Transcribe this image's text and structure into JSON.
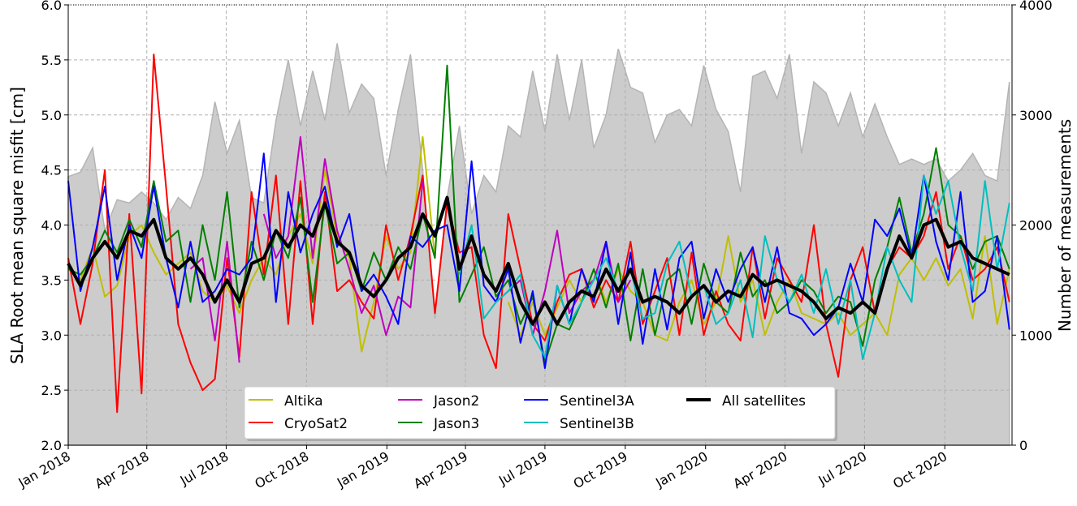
{
  "chart_data": {
    "type": "line",
    "title": "",
    "xlabel": "",
    "ylabel": "SLA Root mean square misfit [cm]",
    "y2label": "Number of measurements",
    "x_units": "days since 2018-01-01",
    "xlim": [
      0,
      1081
    ],
    "ylim": [
      2.0,
      6.0
    ],
    "y2lim": [
      0,
      4000
    ],
    "grid": true,
    "legend_placement": "bottom-center",
    "x_ticks": [
      {
        "day": 0,
        "label": "Jan 2018"
      },
      {
        "day": 90,
        "label": "Apr 2018"
      },
      {
        "day": 181,
        "label": "Jul 2018"
      },
      {
        "day": 273,
        "label": "Oct 2018"
      },
      {
        "day": 365,
        "label": "Jan 2019"
      },
      {
        "day": 455,
        "label": "Apr 2019"
      },
      {
        "day": 546,
        "label": "Jul 2019"
      },
      {
        "day": 638,
        "label": "Oct 2019"
      },
      {
        "day": 730,
        "label": "Jan 2020"
      },
      {
        "day": 821,
        "label": "Apr 2020"
      },
      {
        "day": 912,
        "label": "Jul 2020"
      },
      {
        "day": 1004,
        "label": "Oct 2020"
      }
    ],
    "y_ticks": [
      "2.0",
      "2.5",
      "3.0",
      "3.5",
      "4.0",
      "4.5",
      "5.0",
      "5.5",
      "6.0"
    ],
    "y2_ticks": [
      "0",
      "1000",
      "2000",
      "3000",
      "4000"
    ],
    "step_days": 14,
    "measurements": {
      "name": "Number of measurements",
      "color": "#cccccc",
      "values": [
        2440,
        2480,
        2700,
        1950,
        2230,
        2200,
        2300,
        2200,
        2050,
        2250,
        2150,
        2450,
        3120,
        2650,
        2950,
        2250,
        2200,
        2950,
        3500,
        2900,
        3400,
        2950,
        3650,
        3020,
        3280,
        3150,
        2450,
        3050,
        3550,
        2500,
        1150,
        2250,
        2900,
        2100,
        2450,
        2300,
        2900,
        2800,
        3400,
        2850,
        3550,
        2950,
        3500,
        2700,
        3000,
        3600,
        3250,
        3200,
        2750,
        3000,
        3050,
        2900,
        3450,
        3050,
        2850,
        2300,
        3350,
        3400,
        3150,
        3550,
        2650,
        3300,
        3200,
        2900,
        3200,
        2800,
        3100,
        2800,
        2550,
        2600,
        2550,
        2600,
        2400,
        2500,
        2650,
        2450,
        2400,
        3300
      ]
    },
    "series": [
      {
        "name": "Altika",
        "color": "#bfbf00",
        "width": 2,
        "start_index": 0,
        "values": [
          3.6,
          3.5,
          3.8,
          3.35,
          3.45,
          3.9,
          4.0,
          3.75,
          3.55,
          3.65,
          3.75,
          3.4,
          3.3,
          3.45,
          3.2,
          3.5,
          3.7,
          3.55,
          3.9,
          4.1,
          3.65,
          4.5,
          3.9,
          3.7,
          2.85,
          3.3,
          3.9,
          3.6,
          3.75,
          4.8,
          3.7,
          null,
          null,
          null,
          null,
          null,
          3.3,
          3.0,
          3.3,
          3.0,
          3.25,
          3.5,
          3.3,
          3.6,
          3.3,
          3.6,
          3.4,
          3.3,
          3.0,
          2.95,
          3.3,
          3.5,
          3.1,
          3.3,
          3.9,
          3.3,
          3.5,
          3.0,
          3.3,
          3.5,
          3.2,
          3.15,
          3.1,
          3.2,
          3.0,
          3.1,
          3.2,
          3.0,
          3.55,
          3.7,
          3.5,
          3.7,
          3.45,
          3.6,
          3.15,
          3.9,
          3.1,
          3.6
        ]
      },
      {
        "name": "CryoSat2",
        "color": "#ff0000",
        "width": 2,
        "start_index": 0,
        "values": [
          3.7,
          3.1,
          3.65,
          4.5,
          2.3,
          4.1,
          2.47,
          5.55,
          4.35,
          3.1,
          2.75,
          2.5,
          2.6,
          3.7,
          2.8,
          4.3,
          3.55,
          4.45,
          3.1,
          4.4,
          3.1,
          4.3,
          3.4,
          3.5,
          3.3,
          3.15,
          4.0,
          3.5,
          3.9,
          4.45,
          3.2,
          4.2,
          3.75,
          3.8,
          3.0,
          2.7,
          4.1,
          3.6,
          3.1,
          2.95,
          3.3,
          3.55,
          3.6,
          3.25,
          3.5,
          3.3,
          3.85,
          3.1,
          3.4,
          3.7,
          3.0,
          3.75,
          3.0,
          3.4,
          3.1,
          2.95,
          3.8,
          3.15,
          3.7,
          3.5,
          3.3,
          4.0,
          3.1,
          2.62,
          3.5,
          3.8,
          3.2,
          3.6,
          3.8,
          3.7,
          3.9,
          4.3,
          3.6,
          3.9,
          3.5,
          3.6,
          3.8,
          3.3
        ]
      },
      {
        "name": "Jason2",
        "color": "#bf00bf",
        "width": 2,
        "start_index": 10,
        "values": [
          3.6,
          3.7,
          2.95,
          3.85,
          2.75,
          null,
          4.1,
          3.7,
          3.9,
          4.8,
          3.7,
          4.6,
          3.95,
          3.6,
          3.2,
          3.45,
          3.0,
          3.35,
          3.25,
          4.4,
          null,
          null,
          null,
          null,
          null,
          3.3,
          3.4,
          3.5,
          3.0,
          3.4,
          3.95,
          3.2,
          3.4,
          3.5,
          3.85,
          3.3,
          3.5
        ]
      },
      {
        "name": "Jason3",
        "color": "#008000",
        "width": 2,
        "start_index": 0,
        "values": [
          3.6,
          3.55,
          3.7,
          3.95,
          3.75,
          4.05,
          3.8,
          4.4,
          3.85,
          3.95,
          3.3,
          4.0,
          3.5,
          4.3,
          3.25,
          3.85,
          3.5,
          3.95,
          3.7,
          4.25,
          3.3,
          4.2,
          3.65,
          3.75,
          3.4,
          3.75,
          3.5,
          3.8,
          3.6,
          4.1,
          3.7,
          5.45,
          3.3,
          3.55,
          3.8,
          3.35,
          3.5,
          3.1,
          3.35,
          2.75,
          3.1,
          3.05,
          3.3,
          3.6,
          3.25,
          3.65,
          2.95,
          3.6,
          3.0,
          3.5,
          3.6,
          3.1,
          3.65,
          3.3,
          3.2,
          3.75,
          3.35,
          3.5,
          3.2,
          3.3,
          3.5,
          3.4,
          3.2,
          3.35,
          3.3,
          2.9,
          3.5,
          3.8,
          4.25,
          3.75,
          4.1,
          4.7,
          4.0,
          3.9,
          3.6,
          3.85,
          3.9,
          3.6
        ]
      },
      {
        "name": "Sentinel3A",
        "color": "#0000ff",
        "width": 2,
        "start_index": 0,
        "values": [
          4.4,
          3.4,
          3.8,
          4.35,
          3.5,
          4.0,
          3.7,
          4.35,
          3.7,
          3.25,
          3.85,
          3.3,
          3.4,
          3.6,
          3.55,
          3.7,
          4.65,
          3.3,
          4.3,
          3.75,
          4.1,
          4.35,
          3.8,
          4.1,
          3.4,
          3.55,
          3.35,
          3.1,
          3.9,
          3.8,
          3.95,
          4.0,
          3.4,
          4.58,
          3.45,
          3.3,
          3.6,
          2.93,
          3.4,
          2.7,
          3.45,
          3.1,
          3.6,
          3.3,
          3.85,
          3.1,
          3.75,
          2.92,
          3.6,
          3.05,
          3.7,
          3.85,
          3.15,
          3.6,
          3.3,
          3.6,
          3.8,
          3.3,
          3.8,
          3.2,
          3.15,
          3.0,
          3.1,
          3.25,
          3.65,
          3.3,
          4.05,
          3.9,
          4.15,
          3.7,
          4.45,
          3.85,
          3.5,
          4.3,
          3.3,
          3.4,
          3.9,
          3.05
        ]
      },
      {
        "name": "Sentinel3B",
        "color": "#00bfbf",
        "width": 2,
        "start_index": 32,
        "values": [
          3.55,
          4.0,
          3.15,
          3.3,
          3.4,
          3.55,
          3.0,
          2.8,
          3.45,
          3.1,
          3.3,
          3.5,
          3.7,
          3.4,
          3.6,
          3.15,
          3.2,
          3.65,
          3.85,
          3.35,
          3.45,
          3.1,
          3.2,
          3.5,
          2.98,
          3.9,
          3.5,
          3.3,
          3.55,
          3.2,
          3.6,
          3.1,
          3.5,
          2.78,
          3.2,
          3.8,
          3.5,
          3.3,
          4.45,
          4.1,
          4.4,
          3.8,
          3.4,
          4.4,
          3.6,
          4.2
        ]
      },
      {
        "name": "All satellites",
        "color": "#000000",
        "width": 4,
        "start_index": 0,
        "values": [
          3.65,
          3.45,
          3.7,
          3.85,
          3.7,
          3.95,
          3.9,
          4.05,
          3.7,
          3.6,
          3.7,
          3.55,
          3.3,
          3.5,
          3.3,
          3.65,
          3.7,
          3.95,
          3.8,
          4.0,
          3.9,
          4.2,
          3.85,
          3.75,
          3.45,
          3.35,
          3.5,
          3.7,
          3.8,
          4.1,
          3.9,
          4.25,
          3.6,
          3.9,
          3.55,
          3.4,
          3.65,
          3.3,
          3.1,
          3.3,
          3.1,
          3.3,
          3.4,
          3.35,
          3.6,
          3.4,
          3.6,
          3.3,
          3.35,
          3.3,
          3.2,
          3.35,
          3.45,
          3.3,
          3.4,
          3.35,
          3.55,
          3.45,
          3.5,
          3.45,
          3.4,
          3.3,
          3.15,
          3.25,
          3.2,
          3.3,
          3.2,
          3.6,
          3.9,
          3.7,
          4.0,
          4.05,
          3.8,
          3.85,
          3.7,
          3.65,
          3.6,
          3.55
        ]
      }
    ]
  }
}
